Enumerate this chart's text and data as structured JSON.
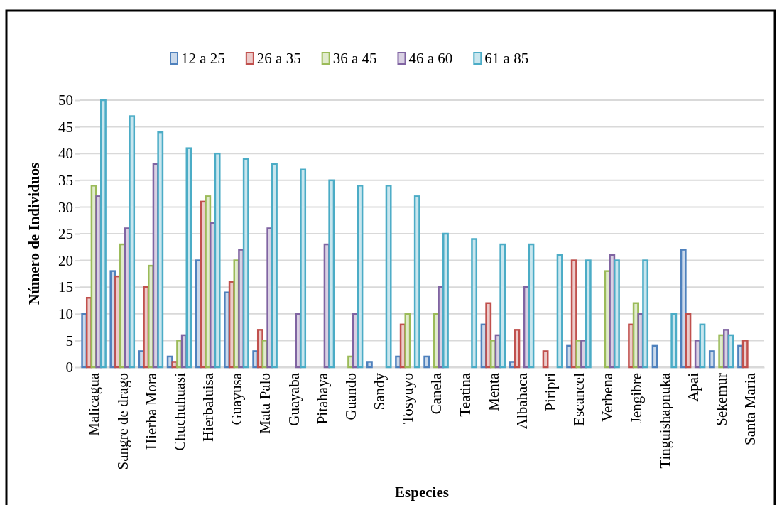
{
  "chart_data": {
    "type": "bar",
    "xlabel": "Especies",
    "ylabel": "Número de Individuos",
    "categories": [
      "Malicagua",
      "Sangre de drago",
      "Hierba Mora",
      "Chuchuhuasi",
      "Hierbaluisa",
      "Guayusa",
      "Mata Palo",
      "Guayaba",
      "Pitahaya",
      "Guando",
      "Sandy",
      "Tosyuyo",
      "Canela",
      "Teatina",
      "Menta",
      "Albahaca",
      "Piripri",
      "Escancel",
      "Verbena",
      "Jengibre",
      "Tinguishapnuka",
      "Apai",
      "Sekemur",
      "Santa Maria"
    ],
    "series": [
      {
        "name": "12 a 25",
        "color": "#4f81bd",
        "values": [
          10,
          18,
          3,
          2,
          20,
          14,
          3,
          0,
          0,
          0,
          1,
          2,
          2,
          0,
          8,
          1,
          0,
          4,
          0,
          0,
          4,
          22,
          3,
          4
        ]
      },
      {
        "name": "26 a 35",
        "color": "#c0504d",
        "values": [
          13,
          17,
          15,
          1,
          31,
          16,
          7,
          0,
          0,
          0,
          0,
          8,
          0,
          0,
          12,
          7,
          3,
          20,
          0,
          8,
          0,
          10,
          0,
          5
        ]
      },
      {
        "name": "36 a 45",
        "color": "#9bbb59",
        "values": [
          34,
          23,
          19,
          5,
          32,
          20,
          5,
          0,
          0,
          2,
          0,
          10,
          10,
          0,
          5,
          0,
          0,
          5,
          18,
          12,
          0,
          0,
          6,
          0
        ]
      },
      {
        "name": "46 a 60",
        "color": "#8064a2",
        "values": [
          32,
          26,
          38,
          6,
          27,
          22,
          26,
          10,
          23,
          10,
          0,
          0,
          15,
          0,
          6,
          15,
          0,
          5,
          21,
          10,
          0,
          5,
          7,
          0
        ]
      },
      {
        "name": "61 a 85",
        "color": "#4bacc6",
        "values": [
          50,
          47,
          44,
          41,
          40,
          39,
          38,
          37,
          35,
          34,
          34,
          32,
          25,
          24,
          23,
          23,
          21,
          20,
          20,
          20,
          10,
          8,
          6,
          0
        ]
      }
    ],
    "ylim": [
      0,
      50
    ],
    "yticks": [
      0,
      5,
      10,
      15,
      20,
      25,
      30,
      35,
      40,
      45,
      50
    ],
    "grid": "y",
    "legend": "top"
  }
}
